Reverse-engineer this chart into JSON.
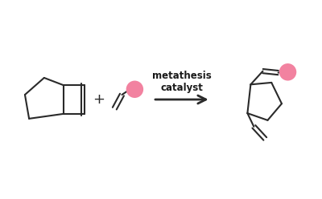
{
  "bg_color": "#ffffff",
  "pink_color": "#f282a0",
  "line_color": "#2a2a2a",
  "line_width": 1.5,
  "arrow_text_line1": "metathesis",
  "arrow_text_line2": "catalyst",
  "text_color": "#1a1a1a",
  "text_fontsize": 8.5,
  "figsize": [
    4.0,
    2.48
  ],
  "dpi": 100,
  "xlim": [
    0,
    10
  ],
  "ylim": [
    0,
    6.2
  ]
}
